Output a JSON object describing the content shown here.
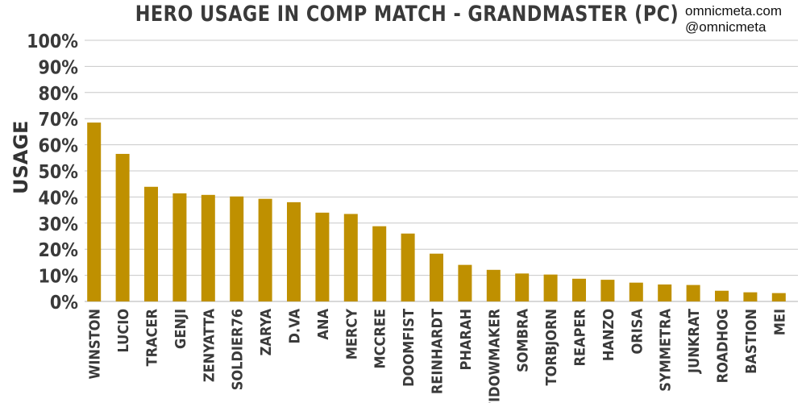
{
  "chart_data": {
    "type": "bar",
    "title": "HERO USAGE IN COMP MATCH - GRANDMASTER (PC)",
    "ylabel": "USAGE",
    "xlabel": "",
    "ylim": [
      0,
      100
    ],
    "yticks": [
      "0%",
      "10%",
      "20%",
      "30%",
      "40%",
      "50%",
      "60%",
      "70%",
      "80%",
      "90%",
      "100%"
    ],
    "grid": true,
    "bar_color": "#bf9000",
    "categories": [
      "WINSTON",
      "LUCIO",
      "TRACER",
      "GENJI",
      "ZENYATTA",
      "SOLDIER76",
      "ZARYA",
      "D.VA",
      "ANA",
      "MERCY",
      "MCCREE",
      "DOOMFIST",
      "REINHARDT",
      "PHARAH",
      "WIDOWMAKER",
      "SOMBRA",
      "TORBJORN",
      "REAPER",
      "HANZO",
      "ORISA",
      "SYMMETRA",
      "JUNKRAT",
      "ROADHOG",
      "BASTION",
      "MEI"
    ],
    "values": [
      68.5,
      56.5,
      43.9,
      41.4,
      40.8,
      40.2,
      39.3,
      38.0,
      34.0,
      33.5,
      28.8,
      26.0,
      18.3,
      14.0,
      12.1,
      10.7,
      10.3,
      8.7,
      8.3,
      7.2,
      6.5,
      6.3,
      4.1,
      3.5,
      3.2
    ]
  },
  "watermark": {
    "line1": "omnicmeta.com",
    "line2": "@omnicmeta"
  }
}
